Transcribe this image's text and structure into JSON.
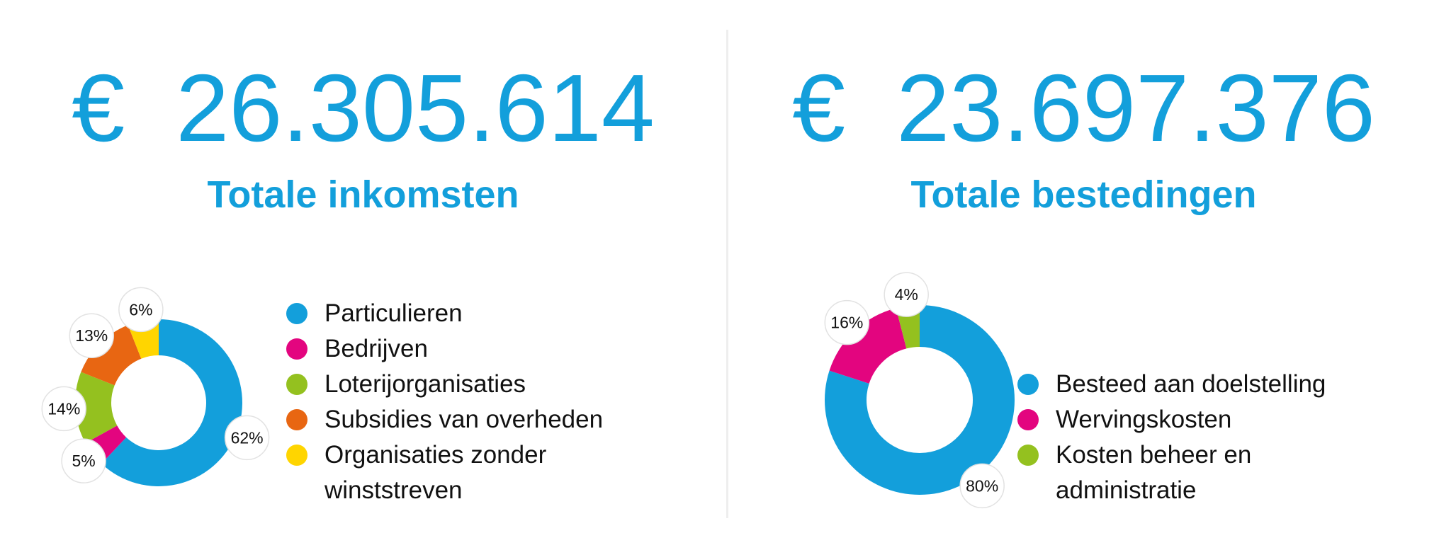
{
  "panels": [
    {
      "id": "income",
      "currency": "€",
      "amount": "26.305.614",
      "title": "Totale inkomsten"
    },
    {
      "id": "spending",
      "currency": "€",
      "amount": "23.697.376",
      "title": "Totale bestedingen"
    }
  ],
  "chart_data": [
    {
      "type": "pie",
      "variant": "donut",
      "start": "top, clockwise",
      "legend_position": "right",
      "slices": [
        {
          "label": "Particulieren",
          "value": 62,
          "value_label": "62%",
          "color": "#139fdb"
        },
        {
          "label": "Bedrijven",
          "value": 5,
          "value_label": "5%",
          "color": "#e3057f"
        },
        {
          "label": "Loterijorganisaties",
          "value": 14,
          "value_label": "14%",
          "color": "#94c11f"
        },
        {
          "label": "Subsidies van overheden",
          "value": 13,
          "value_label": "13%",
          "color": "#e86612"
        },
        {
          "label": "Organisaties zonder winststreven",
          "value": 6,
          "value_label": "6%",
          "color": "#ffd500"
        }
      ]
    },
    {
      "type": "pie",
      "variant": "donut",
      "start": "top, clockwise",
      "legend_position": "right",
      "slices": [
        {
          "label": "Besteed aan doelstelling",
          "value": 80,
          "value_label": "80%",
          "color": "#139fdb"
        },
        {
          "label": "Wervingskosten",
          "value": 16,
          "value_label": "16%",
          "color": "#e3057f"
        },
        {
          "label": "Kosten beheer en administratie",
          "value": 4,
          "value_label": "4%",
          "color": "#94c11f"
        }
      ]
    }
  ]
}
